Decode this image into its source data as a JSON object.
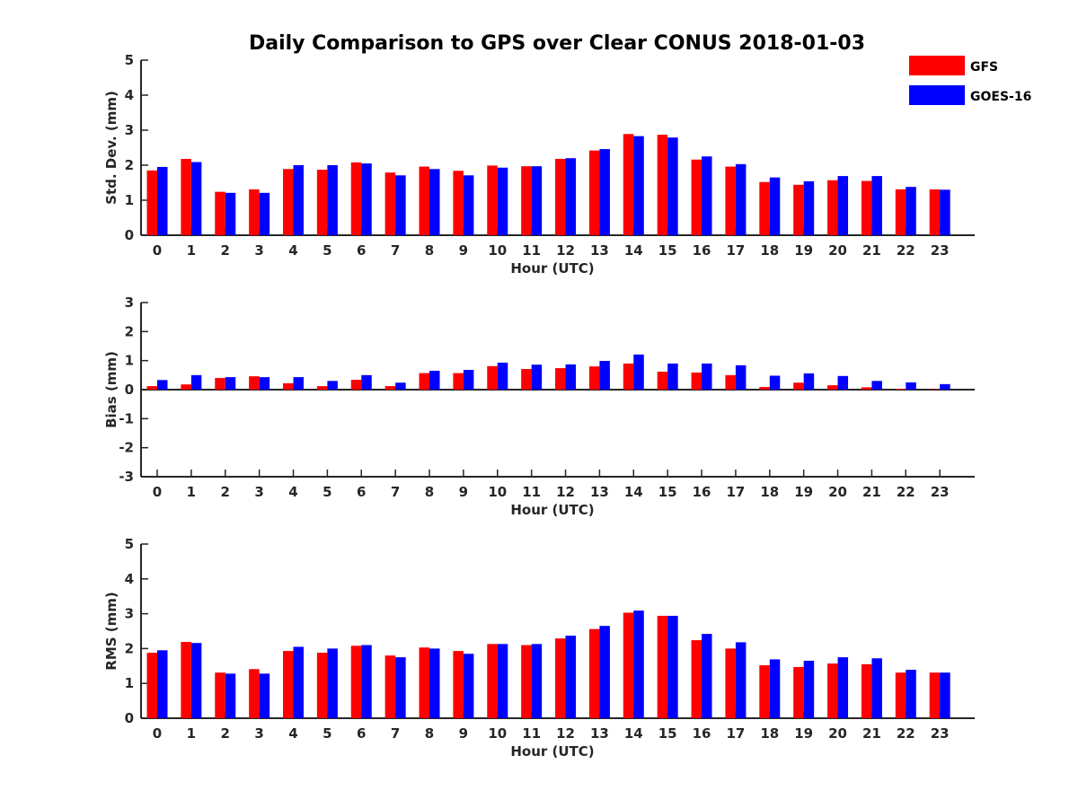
{
  "chart_data": {
    "title": "Daily Comparison to GPS over Clear CONUS 2018-01-03",
    "legend": {
      "placement": "top-right",
      "items": [
        {
          "name": "GFS",
          "color": "#ff0000"
        },
        {
          "name": "GOES-16",
          "color": "#0000ff"
        }
      ]
    },
    "panels": [
      {
        "id": "std",
        "type": "bar",
        "ylabel": "Std. Dev. (mm)",
        "xlabel": "Hour (UTC)",
        "ylim": [
          0,
          5
        ],
        "yticks": [
          "0",
          "1",
          "2",
          "3",
          "4",
          "5"
        ],
        "categories": [
          "0",
          "1",
          "2",
          "3",
          "4",
          "5",
          "6",
          "7",
          "8",
          "9",
          "10",
          "11",
          "12",
          "13",
          "14",
          "15",
          "16",
          "17",
          "18",
          "19",
          "20",
          "21",
          "22",
          "23"
        ],
        "series": [
          {
            "name": "GFS",
            "color": "#ff0000",
            "values": [
              1.85,
              2.18,
              1.24,
              1.31,
              1.89,
              1.87,
              2.08,
              1.79,
              1.96,
              1.84,
              1.99,
              1.97,
              2.18,
              2.42,
              2.89,
              2.87,
              2.16,
              1.96,
              1.52,
              1.44,
              1.57,
              1.55,
              1.31,
              1.31
            ]
          },
          {
            "name": "GOES-16",
            "color": "#0000ff",
            "values": [
              1.95,
              2.09,
              1.21,
              1.21,
              2.0,
              2.0,
              2.05,
              1.71,
              1.89,
              1.71,
              1.93,
              1.97,
              2.2,
              2.46,
              2.83,
              2.79,
              2.25,
              2.03,
              1.65,
              1.54,
              1.69,
              1.69,
              1.38,
              1.3
            ]
          }
        ]
      },
      {
        "id": "bias",
        "type": "bar",
        "ylabel": "Bias (mm)",
        "xlabel": "Hour (UTC)",
        "ylim": [
          -3,
          3
        ],
        "yticks": [
          "-3",
          "-2",
          "-1",
          "0",
          "1",
          "2",
          "3"
        ],
        "categories": [
          "0",
          "1",
          "2",
          "3",
          "4",
          "5",
          "6",
          "7",
          "8",
          "9",
          "10",
          "11",
          "12",
          "13",
          "14",
          "15",
          "16",
          "17",
          "18",
          "19",
          "20",
          "21",
          "22",
          "23"
        ],
        "series": [
          {
            "name": "GFS",
            "color": "#ff0000",
            "values": [
              0.12,
              0.18,
              0.4,
              0.46,
              0.22,
              0.12,
              0.34,
              0.12,
              0.57,
              0.57,
              0.81,
              0.71,
              0.74,
              0.8,
              0.9,
              0.62,
              0.59,
              0.5,
              0.09,
              0.24,
              0.15,
              0.08,
              0.03,
              0.01
            ]
          },
          {
            "name": "GOES-16",
            "color": "#0000ff",
            "values": [
              0.33,
              0.5,
              0.43,
              0.43,
              0.43,
              0.3,
              0.5,
              0.24,
              0.65,
              0.68,
              0.93,
              0.86,
              0.87,
              0.99,
              1.21,
              0.9,
              0.9,
              0.84,
              0.48,
              0.56,
              0.47,
              0.3,
              0.25,
              0.19
            ]
          }
        ]
      },
      {
        "id": "rms",
        "type": "bar",
        "ylabel": "RMS (mm)",
        "xlabel": "Hour (UTC)",
        "ylim": [
          0,
          5
        ],
        "yticks": [
          "0",
          "1",
          "2",
          "3",
          "4",
          "5"
        ],
        "categories": [
          "0",
          "1",
          "2",
          "3",
          "4",
          "5",
          "6",
          "7",
          "8",
          "9",
          "10",
          "11",
          "12",
          "13",
          "14",
          "15",
          "16",
          "17",
          "18",
          "19",
          "20",
          "21",
          "22",
          "23"
        ],
        "series": [
          {
            "name": "GFS",
            "color": "#ff0000",
            "values": [
              1.88,
              2.19,
              1.31,
              1.41,
              1.93,
              1.88,
              2.08,
              1.8,
              2.03,
              1.93,
              2.13,
              2.1,
              2.29,
              2.56,
              3.03,
              2.94,
              2.24,
              2.0,
              1.52,
              1.47,
              1.57,
              1.55,
              1.31,
              1.31
            ]
          },
          {
            "name": "GOES-16",
            "color": "#0000ff",
            "values": [
              1.95,
              2.16,
              1.28,
              1.28,
              2.05,
              2.0,
              2.1,
              1.75,
              2.0,
              1.85,
              2.13,
              2.13,
              2.37,
              2.65,
              3.09,
              2.94,
              2.42,
              2.18,
              1.69,
              1.65,
              1.75,
              1.72,
              1.39,
              1.31
            ]
          }
        ]
      }
    ]
  }
}
